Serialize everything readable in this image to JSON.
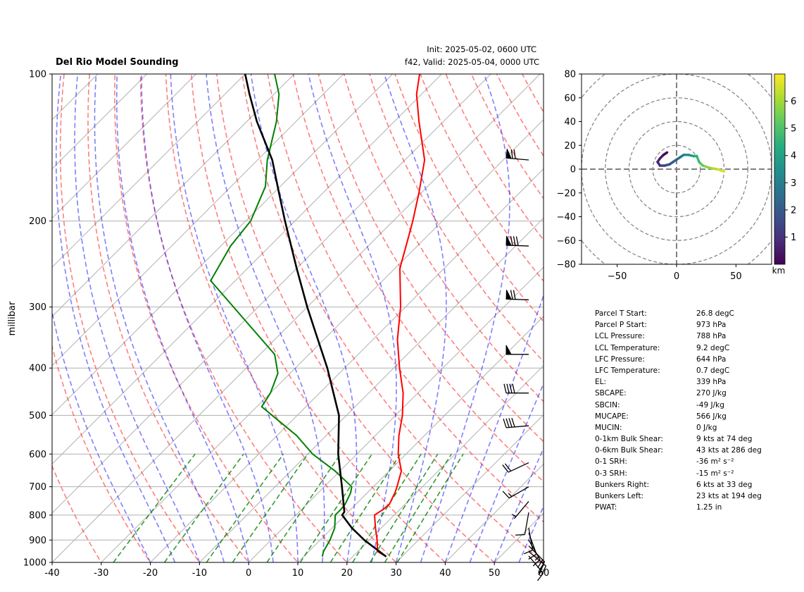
{
  "header": {
    "title": "Del Rio Model Sounding",
    "init": "Init: 2025-05-02, 0600 UTC",
    "valid": "f42, Valid: 2025-05-04, 0000 UTC"
  },
  "chart_data": [
    {
      "type": "line",
      "subtype": "skew-t log-p",
      "ylabel": "millibar",
      "xlim": [
        -40,
        60
      ],
      "ylim": [
        1000,
        100
      ],
      "y_scale": "log",
      "skew": "45deg isotherms",
      "x_ticks": [
        -40,
        -30,
        -20,
        -10,
        0,
        10,
        20,
        30,
        40,
        50,
        60
      ],
      "y_ticks": [
        100,
        200,
        300,
        400,
        500,
        600,
        700,
        800,
        900,
        1000
      ],
      "grid": true,
      "series": [
        {
          "color": "#ff0000",
          "pressure": [
            973,
            950,
            900,
            850,
            800,
            780,
            760,
            740,
            720,
            700,
            650,
            600,
            550,
            500,
            450,
            400,
            350,
            300,
            250,
            220,
            200,
            175,
            150,
            125,
            110,
            100
          ],
          "values": [
            26.8,
            24.0,
            21.6,
            18.8,
            16.0,
            16.6,
            16.8,
            16.2,
            15.6,
            14.8,
            12.5,
            8.4,
            4.8,
            1.4,
            -3.0,
            -8.8,
            -15.0,
            -21.0,
            -29.0,
            -33.0,
            -36.0,
            -40.5,
            -46.0,
            -55.0,
            -61.0,
            -64.5
          ]
        },
        {
          "color": "#008000",
          "pressure": [
            973,
            950,
            900,
            850,
            800,
            780,
            760,
            740,
            720,
            700,
            650,
            600,
            550,
            480,
            450,
            410,
            375,
            300,
            265,
            225,
            200,
            170,
            150,
            125,
            110,
            100
          ],
          "values": [
            13.8,
            13.0,
            12.0,
            10.5,
            8.0,
            8.0,
            7.8,
            7.2,
            6.6,
            5.6,
            -1.0,
            -9.0,
            -16.0,
            -29.0,
            -30.0,
            -32.5,
            -37.0,
            -55.0,
            -65.0,
            -68.0,
            -69.0,
            -73.0,
            -78.0,
            -84.0,
            -89.0,
            -94.0
          ]
        },
        {
          "color": "#000000",
          "pressure": [
            973,
            900,
            850,
            800,
            788,
            700,
            600,
            500,
            400,
            339,
            300,
            250,
            200,
            175,
            150,
            125,
            110,
            100
          ],
          "values": [
            26.8,
            19.0,
            14.0,
            9.4,
            9.2,
            3.6,
            -3.8,
            -11.5,
            -23.5,
            -33.0,
            -40.0,
            -50.0,
            -62.0,
            -69.0,
            -77.0,
            -88.0,
            -95.0,
            -100.0
          ]
        }
      ],
      "wind_barbs": [
        {
          "pressure": 970,
          "speed_kts": 15,
          "direction_deg": 140
        },
        {
          "pressure": 950,
          "speed_kts": 20,
          "direction_deg": 130
        },
        {
          "pressure": 925,
          "speed_kts": 20,
          "direction_deg": 135
        },
        {
          "pressure": 900,
          "speed_kts": 15,
          "direction_deg": 150
        },
        {
          "pressure": 870,
          "speed_kts": 10,
          "direction_deg": 160
        },
        {
          "pressure": 850,
          "speed_kts": 10,
          "direction_deg": 170
        },
        {
          "pressure": 790,
          "speed_kts": 10,
          "direction_deg": 190
        },
        {
          "pressure": 750,
          "speed_kts": 5,
          "direction_deg": 220
        },
        {
          "pressure": 700,
          "speed_kts": 15,
          "direction_deg": 240
        },
        {
          "pressure": 625,
          "speed_kts": 20,
          "direction_deg": 245
        },
        {
          "pressure": 525,
          "speed_kts": 40,
          "direction_deg": 265
        },
        {
          "pressure": 450,
          "speed_kts": 40,
          "direction_deg": 270
        },
        {
          "pressure": 375,
          "speed_kts": 50,
          "direction_deg": 270
        },
        {
          "pressure": 290,
          "speed_kts": 70,
          "direction_deg": 272
        },
        {
          "pressure": 225,
          "speed_kts": 80,
          "direction_deg": 272
        },
        {
          "pressure": 150,
          "speed_kts": 70,
          "direction_deg": 275
        }
      ]
    },
    {
      "type": "line",
      "subtype": "hodograph",
      "xlim": [
        -80,
        80
      ],
      "ylim": [
        -80,
        80
      ],
      "x_ticks": [
        -50,
        0,
        50
      ],
      "y_ticks": [
        -80,
        -60,
        -40,
        -20,
        0,
        20,
        40,
        60,
        80
      ],
      "ring_spacing": 20,
      "colorbar": {
        "label": "km",
        "ticks": [
          1,
          2,
          3,
          4,
          5,
          6
        ],
        "range": [
          0,
          7
        ],
        "colormap": "viridis"
      },
      "points": [
        {
          "u": 40,
          "v": -2,
          "h": 6.8
        },
        {
          "u": 34,
          "v": 0,
          "h": 6.4
        },
        {
          "u": 28,
          "v": 1,
          "h": 6.0
        },
        {
          "u": 22,
          "v": 3,
          "h": 5.5
        },
        {
          "u": 19,
          "v": 6,
          "h": 5.0
        },
        {
          "u": 17,
          "v": 11,
          "h": 4.5
        },
        {
          "u": 14,
          "v": 11,
          "h": 4.0
        },
        {
          "u": 10,
          "v": 12,
          "h": 3.6
        },
        {
          "u": 6,
          "v": 12,
          "h": 3.2
        },
        {
          "u": 3,
          "v": 10,
          "h": 2.8
        },
        {
          "u": 0,
          "v": 8,
          "h": 2.4
        },
        {
          "u": -3,
          "v": 6,
          "h": 2.1
        },
        {
          "u": -6,
          "v": 4,
          "h": 1.8
        },
        {
          "u": -10,
          "v": 3,
          "h": 1.5
        },
        {
          "u": -14,
          "v": 3,
          "h": 1.2
        },
        {
          "u": -16,
          "v": 6,
          "h": 0.9
        },
        {
          "u": -14,
          "v": 9,
          "h": 0.6
        },
        {
          "u": -11,
          "v": 12,
          "h": 0.3
        },
        {
          "u": -8,
          "v": 14,
          "h": 0.1
        }
      ]
    }
  ],
  "stats": [
    {
      "label": "Parcel T Start:",
      "value": "26.8 degC"
    },
    {
      "label": "Parcel P Start:",
      "value": "973 hPa"
    },
    {
      "label": "LCL Pressure:",
      "value": "788 hPa"
    },
    {
      "label": "LCL Temperature:",
      "value": "9.2 degC"
    },
    {
      "label": "LFC Pressure:",
      "value": "644 hPa"
    },
    {
      "label": "LFC Temperature:",
      "value": "0.7 degC"
    },
    {
      "label": "EL:",
      "value": "339 hPa"
    },
    {
      "label": "SBCAPE:",
      "value": "270 J/kg"
    },
    {
      "label": "SBCIN:",
      "value": "-49 J/kg"
    },
    {
      "label": "MUCAPE:",
      "value": "566 J/kg"
    },
    {
      "label": "MUCIN:",
      "value": "0 J/kg"
    },
    {
      "label": "0-1km Bulk Shear:",
      "value": "9 kts at 74 deg"
    },
    {
      "label": "0-6km Bulk Shear:",
      "value": "43 kts at 286 deg"
    },
    {
      "label": "0-1 SRH:",
      "value": "-36 m² s⁻²"
    },
    {
      "label": "0-3 SRH:",
      "value": "-15 m² s⁻²"
    },
    {
      "label": "Bunkers Right:",
      "value": "6 kts at 33 deg"
    },
    {
      "label": "Bunkers Left:",
      "value": "23 kts at 194 deg"
    },
    {
      "label": "PWAT:",
      "value": "1.25 in"
    }
  ]
}
